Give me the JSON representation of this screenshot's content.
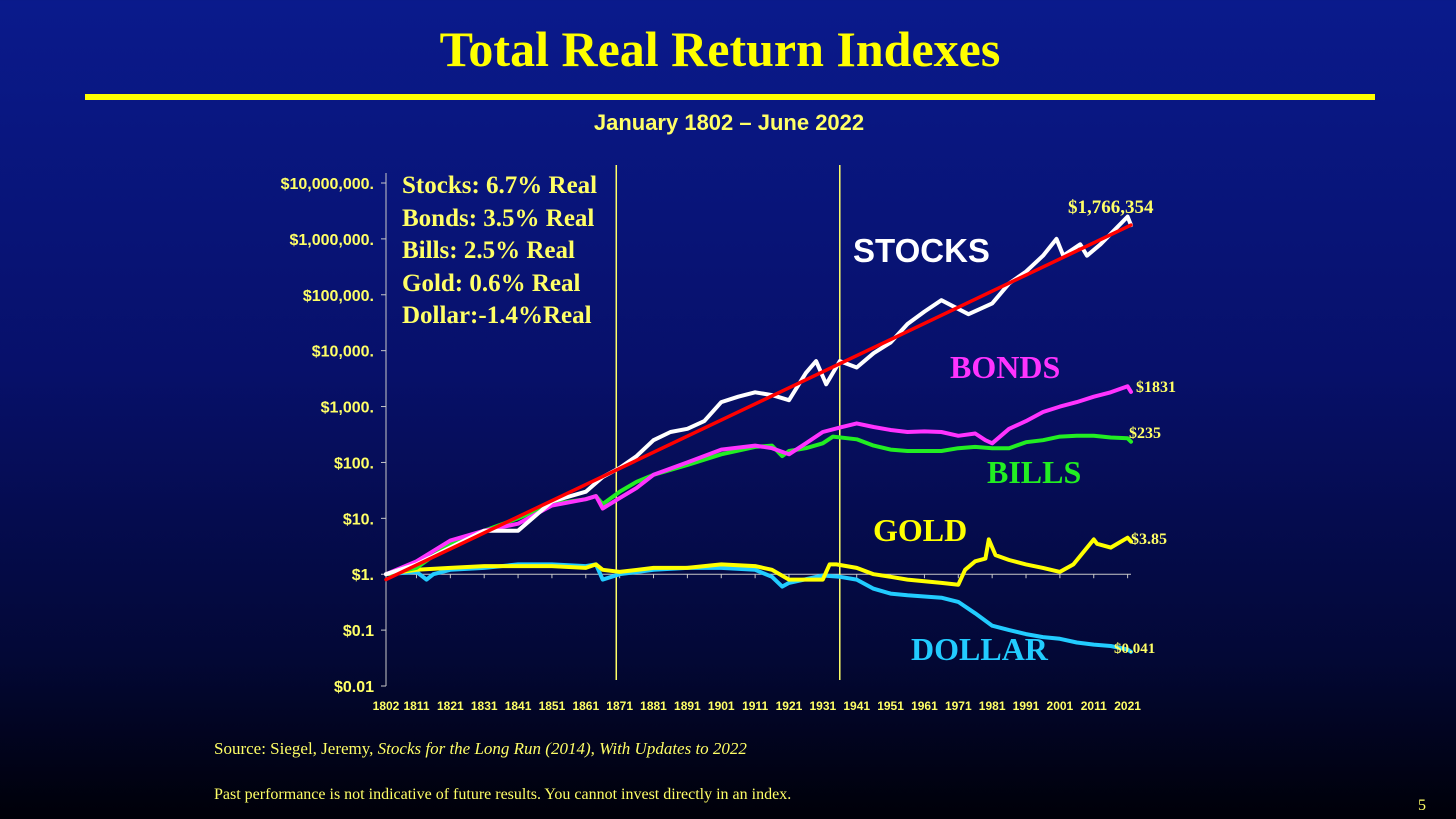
{
  "slide": {
    "title": "Total Real Return Indexes",
    "subtitle": "January 1802 – June 2022",
    "source_prefix": "Source: Siegel, Jeremy, ",
    "source_italic": "Stocks for the Long Run (2014), With Updates to 2022",
    "disclaimer": "Past performance is not indicative of future results. You cannot invest directly in an index.",
    "page_number": "5"
  },
  "colors": {
    "title": "#ffff00",
    "stocks": "#ffffff",
    "trend": "#ff0000",
    "bonds": "#ff33ff",
    "bills": "#22ee22",
    "gold": "#ffff00",
    "dollar": "#22ccff",
    "axis_text": "#ffff66"
  },
  "rates": [
    "Stocks: 6.7% Real",
    "Bonds: 3.5% Real",
    "Bills: 2.5% Real",
    "Gold: 0.6% Real",
    "Dollar:-1.4%Real"
  ],
  "chart_data": {
    "type": "line",
    "scale": "log",
    "ylim": [
      0.01,
      10000000
    ],
    "xlim": [
      1802,
      2022
    ],
    "x_ticks": [
      "1802",
      "1811",
      "1821",
      "1831",
      "1841",
      "1851",
      "1861",
      "1871",
      "1881",
      "1891",
      "1901",
      "1911",
      "1921",
      "1931",
      "1941",
      "1951",
      "1961",
      "1971",
      "1981",
      "1991",
      "2001",
      "2011",
      "2021"
    ],
    "y_ticks": [
      {
        "value": 10000000,
        "label": "$10,000,000."
      },
      {
        "value": 1000000,
        "label": "$1,000,000."
      },
      {
        "value": 100000,
        "label": "$100,000."
      },
      {
        "value": 10000,
        "label": "$10,000."
      },
      {
        "value": 1000,
        "label": "$1,000."
      },
      {
        "value": 100,
        "label": "$100."
      },
      {
        "value": 10,
        "label": "$10."
      },
      {
        "value": 1,
        "label": "$1."
      },
      {
        "value": 0.1,
        "label": "$0.1"
      },
      {
        "value": 0.01,
        "label": "$0.01"
      }
    ],
    "vertical_markers": [
      1870,
      1936
    ],
    "series": [
      {
        "name": "STOCKS",
        "color": "#ffffff",
        "end_label": "$1,766,354",
        "x": [
          1802,
          1811,
          1821,
          1831,
          1841,
          1851,
          1861,
          1866,
          1871,
          1876,
          1881,
          1886,
          1891,
          1896,
          1901,
          1906,
          1911,
          1916,
          1921,
          1926,
          1929,
          1932,
          1936,
          1941,
          1946,
          1951,
          1956,
          1961,
          1966,
          1970,
          1974,
          1981,
          1986,
          1991,
          1996,
          2000,
          2002,
          2007,
          2009,
          2013,
          2021,
          2022
        ],
        "y": [
          1,
          1.5,
          3,
          6,
          6,
          20,
          30,
          55,
          80,
          130,
          250,
          350,
          400,
          550,
          1200,
          1500,
          1800,
          1600,
          1300,
          4000,
          6500,
          2500,
          6500,
          5000,
          9000,
          14000,
          30000,
          50000,
          80000,
          60000,
          45000,
          70000,
          160000,
          260000,
          500000,
          1000000,
          500000,
          800000,
          500000,
          800000,
          2500000,
          1766354
        ]
      },
      {
        "name": "TREND",
        "color": "#ff0000",
        "x": [
          1802,
          2022
        ],
        "y": [
          0.8,
          1766354
        ]
      },
      {
        "name": "BONDS",
        "color": "#ff33ff",
        "end_label": "$1831",
        "x": [
          1802,
          1811,
          1821,
          1831,
          1841,
          1851,
          1861,
          1864,
          1866,
          1871,
          1876,
          1881,
          1891,
          1901,
          1911,
          1916,
          1921,
          1926,
          1931,
          1936,
          1941,
          1946,
          1951,
          1956,
          1961,
          1966,
          1971,
          1976,
          1979,
          1981,
          1986,
          1991,
          1996,
          2001,
          2006,
          2011,
          2016,
          2021,
          2022
        ],
        "y": [
          1,
          1.7,
          4,
          6,
          8,
          17,
          22,
          25,
          15,
          23,
          35,
          60,
          100,
          170,
          200,
          180,
          140,
          220,
          350,
          420,
          500,
          430,
          380,
          350,
          360,
          350,
          300,
          330,
          250,
          220,
          400,
          550,
          800,
          1000,
          1200,
          1500,
          1800,
          2300,
          1831
        ]
      },
      {
        "name": "BILLS",
        "color": "#22ee22",
        "end_label": "$235",
        "x": [
          1802,
          1811,
          1821,
          1831,
          1841,
          1851,
          1861,
          1864,
          1866,
          1871,
          1876,
          1881,
          1891,
          1901,
          1911,
          1916,
          1919,
          1921,
          1926,
          1931,
          1934,
          1941,
          1946,
          1951,
          1956,
          1961,
          1966,
          1971,
          1976,
          1981,
          1986,
          1991,
          1996,
          2001,
          2006,
          2011,
          2016,
          2021,
          2022
        ],
        "y": [
          1,
          1.3,
          3.5,
          6,
          10,
          18,
          22,
          25,
          18,
          30,
          45,
          60,
          90,
          140,
          190,
          200,
          130,
          160,
          180,
          220,
          290,
          260,
          200,
          170,
          160,
          160,
          160,
          180,
          190,
          180,
          180,
          230,
          250,
          290,
          300,
          300,
          280,
          270,
          235
        ]
      },
      {
        "name": "GOLD",
        "color": "#ffff00",
        "end_label": "$3.85",
        "x": [
          1802,
          1811,
          1821,
          1831,
          1841,
          1851,
          1861,
          1864,
          1866,
          1871,
          1881,
          1891,
          1901,
          1911,
          1916,
          1921,
          1931,
          1933,
          1935,
          1941,
          1946,
          1951,
          1956,
          1961,
          1966,
          1971,
          1973,
          1976,
          1979,
          1980,
          1982,
          1986,
          1991,
          1996,
          2001,
          2005,
          2011,
          2012,
          2016,
          2021,
          2022
        ],
        "y": [
          1,
          1.2,
          1.3,
          1.4,
          1.4,
          1.4,
          1.3,
          1.5,
          1.2,
          1.1,
          1.3,
          1.3,
          1.5,
          1.4,
          1.2,
          0.8,
          0.8,
          1.5,
          1.5,
          1.3,
          1,
          0.9,
          0.8,
          0.75,
          0.7,
          0.65,
          1.2,
          1.7,
          1.9,
          4.2,
          2.2,
          1.8,
          1.5,
          1.3,
          1.1,
          1.5,
          4.2,
          3.5,
          3,
          4.5,
          3.85
        ]
      },
      {
        "name": "DOLLAR",
        "color": "#22ccff",
        "end_label": "$0.041",
        "x": [
          1802,
          1811,
          1814,
          1816,
          1821,
          1831,
          1841,
          1851,
          1861,
          1864,
          1866,
          1871,
          1881,
          1891,
          1901,
          1911,
          1916,
          1919,
          1921,
          1931,
          1936,
          1941,
          1946,
          1951,
          1956,
          1961,
          1966,
          1971,
          1976,
          1981,
          1986,
          1991,
          1996,
          2001,
          2006,
          2011,
          2016,
          2021,
          2022
        ],
        "y": [
          1,
          1.1,
          0.8,
          1,
          1.2,
          1.3,
          1.5,
          1.5,
          1.4,
          1.5,
          0.8,
          1,
          1.2,
          1.3,
          1.3,
          1.2,
          0.9,
          0.6,
          0.7,
          0.95,
          0.9,
          0.8,
          0.55,
          0.45,
          0.42,
          0.4,
          0.38,
          0.32,
          0.2,
          0.12,
          0.1,
          0.085,
          0.075,
          0.07,
          0.06,
          0.055,
          0.052,
          0.045,
          0.041
        ]
      }
    ],
    "series_labels": [
      {
        "text": "STOCKS",
        "color": "#ffffff"
      },
      {
        "text": "BONDS",
        "color": "#ff33ff"
      },
      {
        "text": "BILLS",
        "color": "#22ee22"
      },
      {
        "text": "GOLD",
        "color": "#ffff00"
      },
      {
        "text": "DOLLAR",
        "color": "#22ccff"
      }
    ]
  }
}
